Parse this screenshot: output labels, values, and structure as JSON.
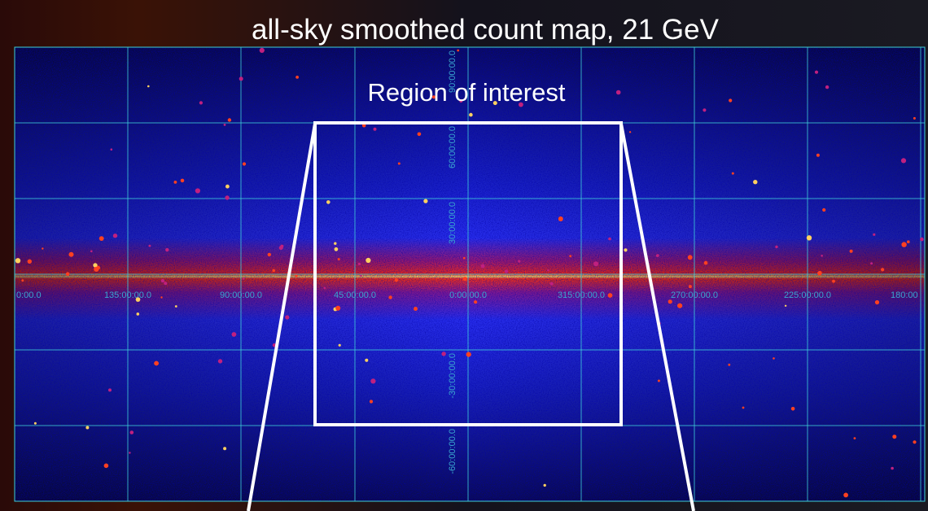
{
  "header": {
    "title": "all-sky smoothed count map, 21 GeV"
  },
  "region": {
    "label": "Region of interest"
  },
  "map": {
    "longitude_labels": [
      "0:00.0",
      "135:00:00.0",
      "90:00:00.0",
      "45:00:00.0",
      "0:00:00.0",
      "315:00:00.0",
      "270:00:00.0",
      "225:00:00.0",
      "180:00"
    ],
    "latitude_labels": [
      "90:00:00.0",
      "60:00:00.0",
      "30:00:00.0",
      "-30:00:00.0",
      "-60:00:00.0"
    ]
  }
}
